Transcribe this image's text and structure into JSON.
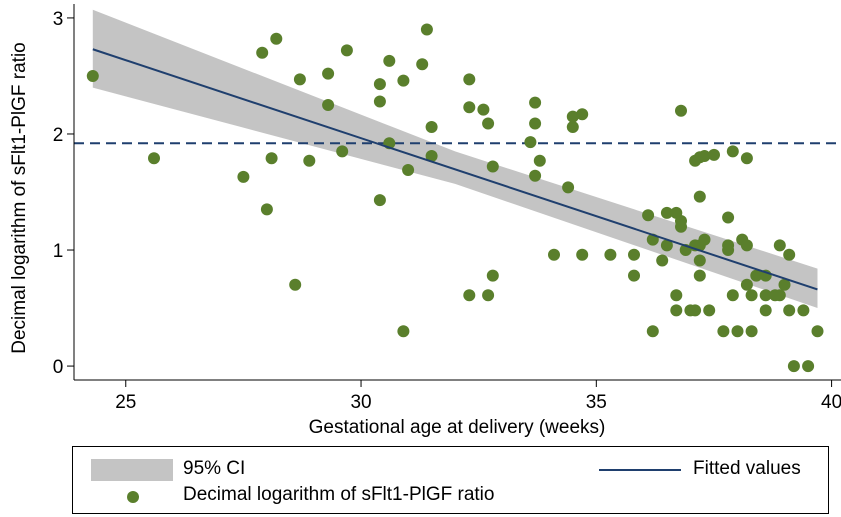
{
  "chart_data": {
    "type": "scatter",
    "xlabel": "Gestational age at delivery (weeks)",
    "ylabel": "Decimal logarithm of sFlt1-PlGF ratio",
    "xlim": [
      23.9,
      40.2
    ],
    "ylim": [
      -0.12,
      3.12
    ],
    "xticks": [
      25,
      30,
      35,
      40
    ],
    "yticks": [
      0,
      1,
      2,
      3
    ],
    "grid": false,
    "reference_line_y": 1.92,
    "fit": {
      "x0": 24.3,
      "y0": 2.73,
      "x1": 39.7,
      "y1": 0.66
    },
    "ci_band": {
      "upper": [
        [
          24.3,
          3.07
        ],
        [
          32.0,
          1.85
        ],
        [
          39.7,
          0.84
        ]
      ],
      "lower": [
        [
          24.3,
          2.4
        ],
        [
          32.0,
          1.57
        ],
        [
          39.7,
          0.5
        ]
      ]
    },
    "colors": {
      "points": "#5a7f2c",
      "fit": "#1f3f6e",
      "ci": "#c4c4c4",
      "ref": "#1f3f6e"
    },
    "points": [
      [
        24.3,
        2.5
      ],
      [
        25.6,
        1.79
      ],
      [
        27.5,
        1.63
      ],
      [
        27.9,
        2.7
      ],
      [
        28.0,
        1.35
      ],
      [
        28.1,
        1.79
      ],
      [
        28.2,
        2.82
      ],
      [
        28.6,
        0.7
      ],
      [
        28.7,
        2.47
      ],
      [
        28.9,
        1.77
      ],
      [
        29.3,
        2.52
      ],
      [
        29.3,
        2.25
      ],
      [
        29.6,
        1.85
      ],
      [
        29.7,
        2.72
      ],
      [
        30.4,
        2.43
      ],
      [
        30.4,
        2.28
      ],
      [
        30.4,
        1.43
      ],
      [
        30.6,
        2.63
      ],
      [
        30.6,
        1.92
      ],
      [
        30.9,
        2.46
      ],
      [
        30.9,
        0.3
      ],
      [
        31.0,
        1.69
      ],
      [
        31.3,
        2.6
      ],
      [
        31.4,
        2.9
      ],
      [
        31.5,
        2.06
      ],
      [
        31.5,
        1.81
      ],
      [
        32.3,
        2.47
      ],
      [
        32.3,
        2.23
      ],
      [
        32.3,
        0.61
      ],
      [
        32.6,
        2.21
      ],
      [
        32.7,
        2.09
      ],
      [
        32.7,
        0.61
      ],
      [
        32.8,
        1.72
      ],
      [
        32.8,
        0.78
      ],
      [
        33.6,
        1.93
      ],
      [
        33.7,
        2.27
      ],
      [
        33.7,
        2.09
      ],
      [
        33.7,
        1.64
      ],
      [
        33.8,
        1.77
      ],
      [
        34.1,
        0.96
      ],
      [
        34.4,
        1.54
      ],
      [
        34.5,
        2.15
      ],
      [
        34.5,
        2.06
      ],
      [
        34.7,
        2.17
      ],
      [
        34.7,
        0.96
      ],
      [
        35.3,
        0.96
      ],
      [
        35.8,
        0.96
      ],
      [
        35.8,
        0.78
      ],
      [
        36.1,
        1.3
      ],
      [
        36.2,
        1.09
      ],
      [
        36.2,
        0.3
      ],
      [
        36.4,
        0.91
      ],
      [
        36.5,
        1.32
      ],
      [
        36.5,
        1.04
      ],
      [
        36.7,
        1.32
      ],
      [
        36.7,
        0.61
      ],
      [
        36.7,
        0.48
      ],
      [
        36.8,
        2.2
      ],
      [
        36.8,
        1.25
      ],
      [
        36.8,
        1.2
      ],
      [
        36.9,
        1.0
      ],
      [
        37.0,
        0.48
      ],
      [
        37.1,
        1.77
      ],
      [
        37.1,
        1.04
      ],
      [
        37.1,
        0.48
      ],
      [
        37.2,
        1.8
      ],
      [
        37.2,
        1.46
      ],
      [
        37.2,
        1.04
      ],
      [
        37.2,
        0.91
      ],
      [
        37.2,
        0.78
      ],
      [
        37.3,
        1.81
      ],
      [
        37.3,
        1.09
      ],
      [
        37.4,
        0.48
      ],
      [
        37.5,
        1.82
      ],
      [
        37.7,
        0.3
      ],
      [
        37.8,
        1.28
      ],
      [
        37.8,
        1.04
      ],
      [
        37.8,
        1.0
      ],
      [
        37.9,
        1.85
      ],
      [
        37.9,
        0.61
      ],
      [
        38.0,
        0.3
      ],
      [
        38.1,
        1.09
      ],
      [
        38.2,
        1.79
      ],
      [
        38.2,
        1.04
      ],
      [
        38.2,
        0.7
      ],
      [
        38.3,
        0.61
      ],
      [
        38.3,
        0.3
      ],
      [
        38.4,
        0.78
      ],
      [
        38.6,
        0.78
      ],
      [
        38.6,
        0.61
      ],
      [
        38.6,
        0.48
      ],
      [
        38.8,
        0.61
      ],
      [
        38.9,
        1.04
      ],
      [
        38.9,
        0.61
      ],
      [
        39.0,
        0.7
      ],
      [
        39.1,
        0.96
      ],
      [
        39.1,
        0.48
      ],
      [
        39.2,
        0.0
      ],
      [
        39.4,
        0.48
      ],
      [
        39.5,
        0.0
      ],
      [
        39.7,
        0.3
      ]
    ]
  },
  "legend": {
    "ci_label": "95% CI",
    "fit_label": "Fitted values",
    "points_label": "Decimal logarithm of sFlt1-PlGF ratio"
  }
}
